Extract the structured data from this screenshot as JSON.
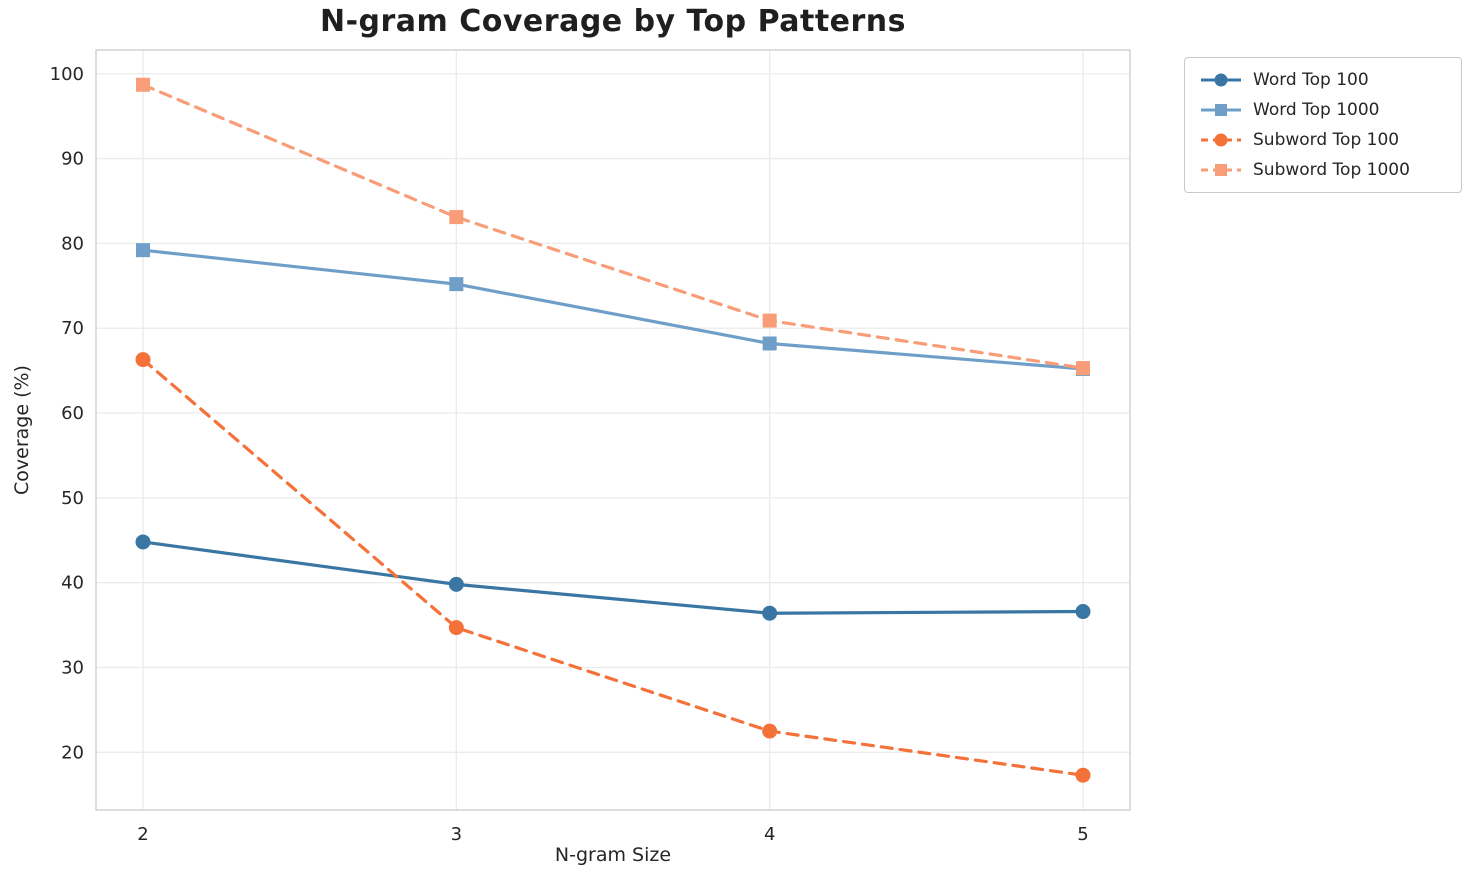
{
  "chart": {
    "title": "N-gram Coverage by Top Patterns",
    "xlabel": "N-gram Size",
    "ylabel": "Coverage (%)"
  },
  "chart_data": {
    "type": "line",
    "x": [
      2,
      3,
      4,
      5
    ],
    "xticks": [
      2,
      3,
      4,
      5
    ],
    "yticks": [
      20,
      30,
      40,
      50,
      60,
      70,
      80,
      90,
      100
    ],
    "xlim": [
      1.85,
      5.15
    ],
    "ylim": [
      13.2,
      102.8
    ],
    "grid": true,
    "legend_position": "outside upper right",
    "series": [
      {
        "name": "Word Top 100",
        "values": [
          44.8,
          39.8,
          36.4,
          36.6
        ],
        "color": "#3a76a3",
        "dash": "solid",
        "marker": "circle"
      },
      {
        "name": "Word Top 1000",
        "values": [
          79.2,
          75.2,
          68.2,
          65.2
        ],
        "color": "#6f9fc8",
        "dash": "solid",
        "marker": "square"
      },
      {
        "name": "Subword Top 100",
        "values": [
          66.3,
          34.7,
          22.5,
          17.3
        ],
        "color": "#f4713a",
        "dash": "dashed",
        "marker": "circle"
      },
      {
        "name": "Subword Top 1000",
        "values": [
          98.7,
          83.1,
          70.9,
          65.3
        ],
        "color": "#f99d78",
        "dash": "dashed",
        "marker": "square"
      }
    ],
    "title": "N-gram Coverage by Top Patterns",
    "xlabel": "N-gram Size",
    "ylabel": "Coverage (%)"
  }
}
